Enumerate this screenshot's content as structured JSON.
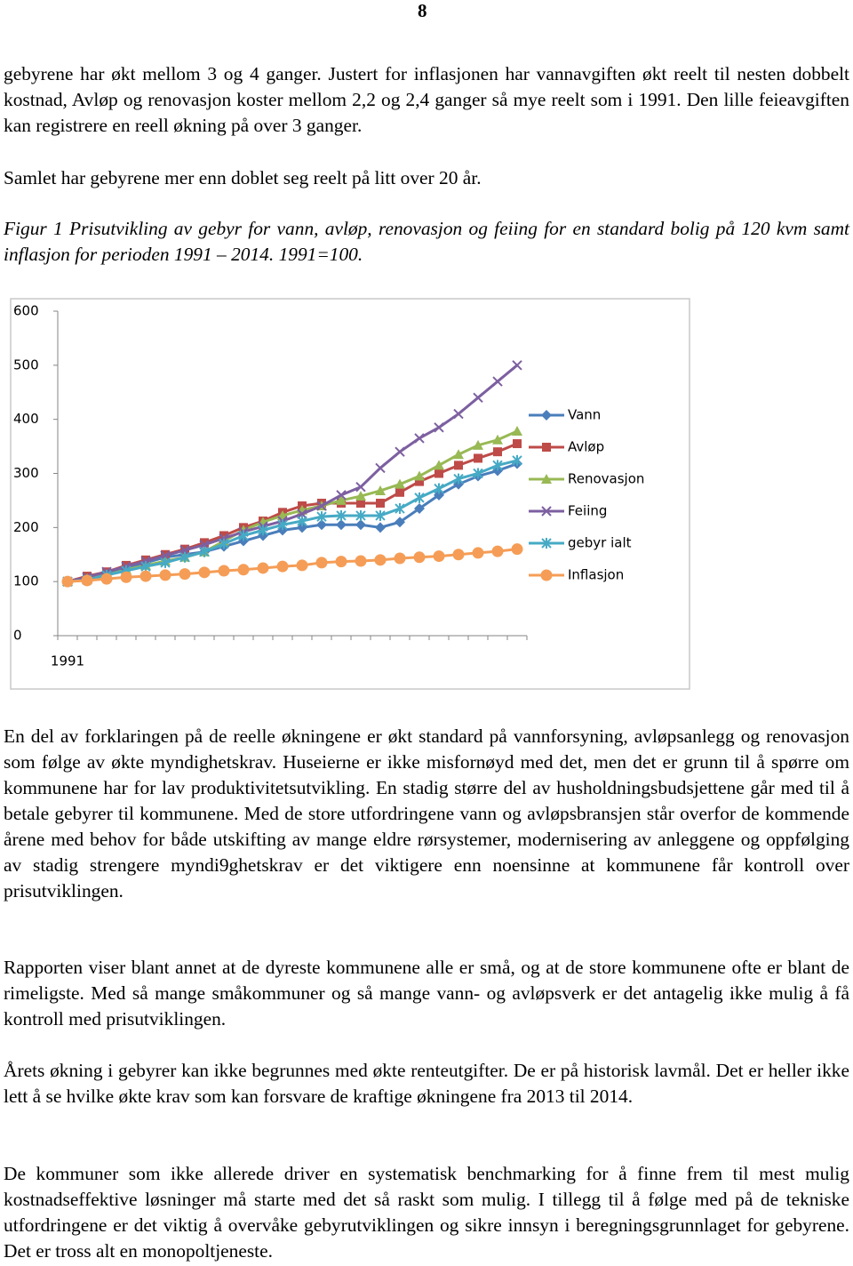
{
  "page_number": "8",
  "paragraphs_before": [
    "gebyrene har økt mellom 3 og 4 ganger. Justert for inflasjonen har vannavgiften økt reelt til nesten dobbelt kostnad, Avløp og renovasjon koster mellom 2,2 og 2,4 ganger så mye reelt som i 1991. Den lille feieavgiften kan registrere en reell økning på over 3 ganger.",
    "Samlet har gebyrene mer enn doblet seg reelt på litt over 20 år."
  ],
  "caption": "Figur 1 Prisutvikling av gebyr for vann, avløp, renovasjon og feiing for en standard bolig på 120 kvm samt inflasjon for perioden 1991 – 2014. 1991=100.",
  "chart_data": {
    "type": "line",
    "categories": [
      "1991",
      null,
      null,
      null,
      null,
      null,
      null,
      null,
      null,
      null,
      null,
      null,
      null,
      null,
      null,
      null,
      null,
      null,
      null,
      null,
      null,
      null,
      null,
      null
    ],
    "ylim": [
      0,
      600
    ],
    "yticks": [
      0,
      100,
      200,
      300,
      400,
      500,
      600
    ],
    "grid": false,
    "legend": "right",
    "series": [
      {
        "name": "Vann",
        "color": "#4a7ebb",
        "marker": "diamond",
        "values": [
          100,
          105,
          115,
          125,
          135,
          145,
          150,
          155,
          165,
          175,
          185,
          195,
          200,
          205,
          205,
          205,
          200,
          210,
          235,
          260,
          280,
          295,
          305,
          318
        ]
      },
      {
        "name": "Avløp",
        "color": "#be4b48",
        "marker": "square",
        "values": [
          100,
          110,
          118,
          130,
          140,
          150,
          160,
          172,
          185,
          200,
          212,
          228,
          240,
          245,
          245,
          245,
          245,
          265,
          285,
          300,
          315,
          328,
          340,
          355
        ]
      },
      {
        "name": "Renovasjon",
        "color": "#98b954",
        "marker": "triangle",
        "values": [
          100,
          105,
          112,
          122,
          130,
          138,
          145,
          155,
          175,
          195,
          210,
          222,
          232,
          240,
          250,
          258,
          268,
          280,
          295,
          315,
          335,
          352,
          362,
          378
        ]
      },
      {
        "name": "Feiing",
        "color": "#7d60a0",
        "marker": "x",
        "values": [
          100,
          108,
          118,
          128,
          138,
          148,
          158,
          168,
          180,
          192,
          202,
          212,
          225,
          240,
          260,
          275,
          310,
          340,
          365,
          385,
          410,
          440,
          470,
          500
        ]
      },
      {
        "name": "gebyr ialt",
        "color": "#46aac5",
        "marker": "asterisk",
        "values": [
          100,
          103,
          112,
          120,
          128,
          135,
          145,
          155,
          170,
          185,
          195,
          205,
          212,
          220,
          222,
          222,
          222,
          235,
          255,
          272,
          290,
          300,
          315,
          324
        ]
      },
      {
        "name": "Inflasjon",
        "color": "#f59d56",
        "marker": "circle",
        "values": [
          100,
          102,
          105,
          108,
          110,
          112,
          114,
          117,
          120,
          122,
          125,
          128,
          130,
          135,
          137,
          138,
          140,
          143,
          145,
          147,
          150,
          153,
          156,
          160
        ]
      }
    ]
  },
  "paragraphs_after": [
    "En del av forklaringen på de reelle økningene er økt standard på vannforsyning, avløpsanlegg og renovasjon som følge av økte myndighetskrav. Huseierne er ikke misfornøyd med det, men det er grunn til å spørre om kommunene har for lav produktivitetsutvikling. En stadig større del av husholdningsbudsjettene går med til å betale gebyrer til kommunene. Med de store utfordringene vann og avløpsbransjen står overfor de kommende årene med behov for både utskifting av mange eldre rørsystemer, modernisering av anleggene og oppfølging av stadig strengere myndi9ghetskrav er det viktigere enn noensinne at kommunene får kontroll over prisutviklingen.",
    "Rapporten viser blant annet at de dyreste kommunene alle er små, og at de store kommunene ofte er blant de rimeligste. Med så mange småkommuner og så mange vann- og avløpsverk er det antagelig ikke mulig å få kontroll med prisutviklingen.",
    "Årets økning i gebyrer kan ikke begrunnes med økte renteutgifter. De er på historisk lavmål. Det er heller ikke lett å se hvilke økte krav som kan forsvare de kraftige økningene fra 2013 til 2014.",
    "De kommuner som ikke allerede driver en systematisk benchmarking for å finne frem til mest mulig kostnadseffektive løsninger må starte med det så raskt som mulig. I tillegg til å følge med på de tekniske utfordringene er det viktig å overvåke gebyrutviklingen og sikre innsyn i beregningsgrunnlaget for gebyrene. Det er tross alt en monopoltjeneste."
  ]
}
